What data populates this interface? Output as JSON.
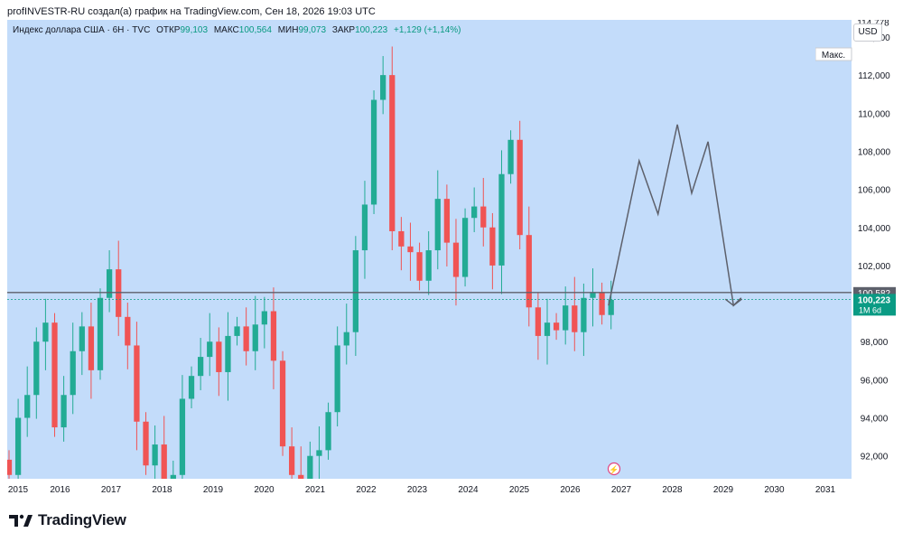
{
  "header": {
    "topline": "profINVESTR-RU создал(а) график на TradingView.com, Сен 18, 2026 19:03 UTC"
  },
  "legend": {
    "symbol": "Индекс доллара США · 6Н · TVC",
    "open_label": "ОТКР",
    "open_value": "99,103",
    "high_label": "МАКС",
    "high_value": "100,564",
    "low_label": "МИН",
    "low_value": "99,073",
    "close_label": "ЗАКР",
    "close_value": "100,223",
    "change": "+1,129 (+1,14%)"
  },
  "currency_button": "USD",
  "brand": {
    "name": "TradingView"
  },
  "price_tags": {
    "max_label": "Макс.",
    "max_value": "114,778",
    "line_value": "100,582",
    "last_value": "100,223",
    "countdown": "1M 6d"
  },
  "colors": {
    "background": "#c3dcfa",
    "up": "#22ab94",
    "down": "#f05454",
    "line": "#5d606b",
    "last_tag": "#0a9b84"
  },
  "chart_data": {
    "type": "candlestick",
    "interval": "6M",
    "x_tick_labels": [
      "2015",
      "2016",
      "2017",
      "2018",
      "2019",
      "2020",
      "2021",
      "2022",
      "2023",
      "2024",
      "2025",
      "2026",
      "2027",
      "2028",
      "2029",
      "2030",
      "2031"
    ],
    "y_tick_labels": [
      "92,000",
      "94,000",
      "96,000",
      "98,000",
      "100,000",
      "102,000",
      "104,000",
      "106,000",
      "108,000",
      "110,000",
      "112,000",
      "114,000"
    ],
    "ylim": [
      90.8,
      114.9
    ],
    "horizontal_line": 100.582,
    "last_price": 100.223,
    "all_time_high": 114.778,
    "closes": [
      91.0,
      94.0,
      95.2,
      98.0,
      99.0,
      93.5,
      95.2,
      97.5,
      98.8,
      96.5,
      100.3,
      101.8,
      99.3,
      97.8,
      93.8,
      91.5,
      92.6,
      90.2,
      91.0,
      95.0,
      96.2,
      97.2,
      98.0,
      96.4,
      98.3,
      98.8,
      97.5,
      98.9,
      99.6,
      97.0,
      92.5,
      91.0,
      90.2,
      92.0,
      92.3,
      94.3,
      97.8,
      98.5,
      102.8,
      105.2,
      110.7,
      112.0,
      103.8,
      103.0,
      102.7,
      101.2,
      102.8,
      105.5,
      103.2,
      101.4,
      104.5,
      105.1,
      104.0,
      102.0,
      106.8,
      108.6,
      103.6,
      99.8,
      98.3,
      99.0,
      98.6,
      99.9,
      98.5,
      100.3,
      100.6,
      99.4,
      100.2
    ],
    "projection_path": [
      [
        2026.75,
        99.9
      ],
      [
        2027.35,
        107.5
      ],
      [
        2027.72,
        104.7
      ],
      [
        2028.1,
        109.4
      ],
      [
        2028.38,
        105.8
      ],
      [
        2028.7,
        108.5
      ],
      [
        2029.2,
        99.9
      ],
      [
        2029.35,
        100.3
      ]
    ]
  }
}
